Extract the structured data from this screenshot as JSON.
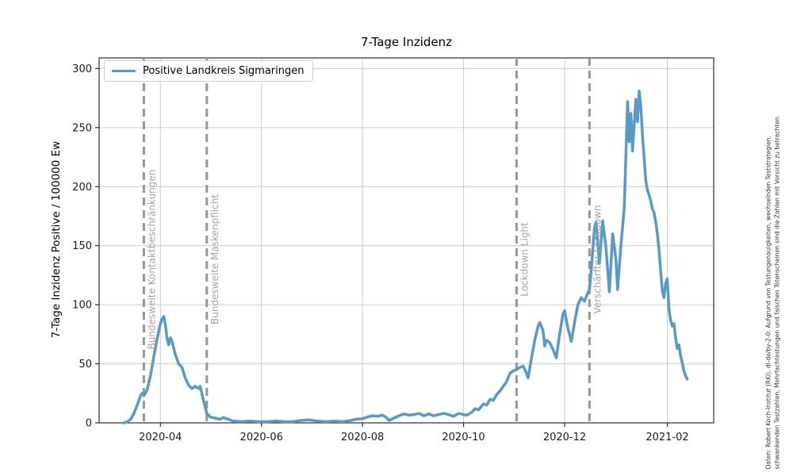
{
  "figure": {
    "title": "7-Tage Inzidenz",
    "source_note_lines": [
      "Daten: Robert Koch-Institut (RKI), dl-de/by-2-0: Aufgrund von Testungenauigkeiten, wechselnden Teststrategien,",
      "schwankenden Testzahlen, Mehrfachtestungen und falschen Totenscheinen sind die Zahlen mit Vorsicht zu betrachten."
    ]
  },
  "colors": {
    "series": "#5799c7",
    "event_line": "#969696",
    "event_label": "#a3a3a3",
    "grid": "#cccccc",
    "spine": "#2b2b2b",
    "tick_text": "#1a1a1a"
  },
  "chart_data": {
    "type": "line",
    "title": "7-Tage Inzidenz",
    "xlabel": "",
    "ylabel": "7-Tage Inzidenz Positive / 100000 Ew",
    "legend_position": "upper left",
    "grid": true,
    "xlim": [
      "2020-02-24",
      "2021-03-01"
    ],
    "ylim": [
      0,
      309
    ],
    "yticks": [
      0,
      50,
      100,
      150,
      200,
      250,
      300
    ],
    "xticks": [
      {
        "date": "2020-04-01",
        "label": "2020-04"
      },
      {
        "date": "2020-06-01",
        "label": "2020-06"
      },
      {
        "date": "2020-08-01",
        "label": "2020-08"
      },
      {
        "date": "2020-10-01",
        "label": "2020-10"
      },
      {
        "date": "2020-12-01",
        "label": "2020-12"
      },
      {
        "date": "2021-02-01",
        "label": "2021-02"
      }
    ],
    "events": [
      {
        "date": "2020-03-22",
        "label": "Bundesweite Kontaktbeschränkungen"
      },
      {
        "date": "2020-04-29",
        "label": "Bundesweite Maskenpflicht"
      },
      {
        "date": "2020-11-02",
        "label": "Lockdown Light"
      },
      {
        "date": "2020-12-16",
        "label": "Verschärfter Lockdown"
      }
    ],
    "series": [
      {
        "name": "Positive Landkreis Sigmaringen",
        "color": "#5799c7",
        "points": [
          [
            "2020-03-10",
            0
          ],
          [
            "2020-03-12",
            1
          ],
          [
            "2020-03-14",
            3
          ],
          [
            "2020-03-16",
            8
          ],
          [
            "2020-03-18",
            15
          ],
          [
            "2020-03-20",
            23
          ],
          [
            "2020-03-21",
            25
          ],
          [
            "2020-03-22",
            23
          ],
          [
            "2020-03-24",
            28
          ],
          [
            "2020-03-26",
            40
          ],
          [
            "2020-03-28",
            56
          ],
          [
            "2020-03-30",
            71
          ],
          [
            "2020-04-01",
            84
          ],
          [
            "2020-04-02",
            88
          ],
          [
            "2020-04-03",
            90
          ],
          [
            "2020-04-04",
            83
          ],
          [
            "2020-04-05",
            72
          ],
          [
            "2020-04-06",
            66
          ],
          [
            "2020-04-07",
            72
          ],
          [
            "2020-04-08",
            69
          ],
          [
            "2020-04-10",
            58
          ],
          [
            "2020-04-12",
            50
          ],
          [
            "2020-04-14",
            47
          ],
          [
            "2020-04-16",
            38
          ],
          [
            "2020-04-18",
            32
          ],
          [
            "2020-04-20",
            29
          ],
          [
            "2020-04-22",
            31
          ],
          [
            "2020-04-24",
            29
          ],
          [
            "2020-04-25",
            31
          ],
          [
            "2020-04-27",
            19
          ],
          [
            "2020-04-29",
            8
          ],
          [
            "2020-05-01",
            5
          ],
          [
            "2020-05-04",
            4
          ],
          [
            "2020-05-07",
            3
          ],
          [
            "2020-05-09",
            4.5
          ],
          [
            "2020-05-12",
            3
          ],
          [
            "2020-05-15",
            1.5
          ],
          [
            "2020-05-20",
            1
          ],
          [
            "2020-05-25",
            1.5
          ],
          [
            "2020-05-30",
            1
          ],
          [
            "2020-06-05",
            1
          ],
          [
            "2020-06-10",
            1.5
          ],
          [
            "2020-06-15",
            1
          ],
          [
            "2020-06-20",
            1
          ],
          [
            "2020-06-25",
            2
          ],
          [
            "2020-06-30",
            2.5
          ],
          [
            "2020-07-05",
            1.5
          ],
          [
            "2020-07-10",
            1
          ],
          [
            "2020-07-15",
            1.5
          ],
          [
            "2020-07-20",
            1
          ],
          [
            "2020-07-25",
            2
          ],
          [
            "2020-07-28",
            3
          ],
          [
            "2020-08-01",
            3.5
          ],
          [
            "2020-08-04",
            5
          ],
          [
            "2020-08-07",
            6
          ],
          [
            "2020-08-10",
            5.5
          ],
          [
            "2020-08-13",
            6.5
          ],
          [
            "2020-08-15",
            5
          ],
          [
            "2020-08-17",
            2
          ],
          [
            "2020-08-20",
            4
          ],
          [
            "2020-08-23",
            6
          ],
          [
            "2020-08-26",
            7.5
          ],
          [
            "2020-08-29",
            6.5
          ],
          [
            "2020-09-01",
            7
          ],
          [
            "2020-09-04",
            8
          ],
          [
            "2020-09-07",
            6
          ],
          [
            "2020-09-10",
            7.5
          ],
          [
            "2020-09-13",
            6
          ],
          [
            "2020-09-16",
            7
          ],
          [
            "2020-09-19",
            8
          ],
          [
            "2020-09-22",
            7
          ],
          [
            "2020-09-25",
            5.5
          ],
          [
            "2020-09-28",
            8
          ],
          [
            "2020-10-01",
            7
          ],
          [
            "2020-10-03",
            6.5
          ],
          [
            "2020-10-06",
            9
          ],
          [
            "2020-10-08",
            12
          ],
          [
            "2020-10-10",
            11
          ],
          [
            "2020-10-13",
            16
          ],
          [
            "2020-10-15",
            15
          ],
          [
            "2020-10-17",
            20
          ],
          [
            "2020-10-19",
            19
          ],
          [
            "2020-10-21",
            24
          ],
          [
            "2020-10-23",
            27
          ],
          [
            "2020-10-25",
            31
          ],
          [
            "2020-10-27",
            35
          ],
          [
            "2020-10-29",
            42
          ],
          [
            "2020-10-31",
            44
          ],
          [
            "2020-11-02",
            45
          ],
          [
            "2020-11-04",
            47
          ],
          [
            "2020-11-06",
            48
          ],
          [
            "2020-11-08",
            42
          ],
          [
            "2020-11-09",
            38
          ],
          [
            "2020-11-11",
            55
          ],
          [
            "2020-11-13",
            70
          ],
          [
            "2020-11-15",
            82
          ],
          [
            "2020-11-16",
            85
          ],
          [
            "2020-11-18",
            78
          ],
          [
            "2020-11-19",
            65
          ],
          [
            "2020-11-20",
            70
          ],
          [
            "2020-11-22",
            68
          ],
          [
            "2020-11-24",
            62
          ],
          [
            "2020-11-26",
            55
          ],
          [
            "2020-11-28",
            75
          ],
          [
            "2020-11-30",
            92
          ],
          [
            "2020-12-01",
            95
          ],
          [
            "2020-12-03",
            80
          ],
          [
            "2020-12-05",
            69
          ],
          [
            "2020-12-07",
            85
          ],
          [
            "2020-12-09",
            100
          ],
          [
            "2020-12-11",
            106
          ],
          [
            "2020-12-13",
            103
          ],
          [
            "2020-12-15",
            110
          ],
          [
            "2020-12-16",
            113
          ],
          [
            "2020-12-17",
            128
          ],
          [
            "2020-12-19",
            165
          ],
          [
            "2020-12-20",
            170
          ],
          [
            "2020-12-22",
            135
          ],
          [
            "2020-12-24",
            171
          ],
          [
            "2020-12-26",
            148
          ],
          [
            "2020-12-28",
            111
          ],
          [
            "2020-12-30",
            160
          ],
          [
            "2021-01-01",
            138
          ],
          [
            "2021-01-02",
            113
          ],
          [
            "2021-01-04",
            150
          ],
          [
            "2021-01-06",
            182
          ],
          [
            "2021-01-08",
            272
          ],
          [
            "2021-01-09",
            238
          ],
          [
            "2021-01-10",
            262
          ],
          [
            "2021-01-11",
            230
          ],
          [
            "2021-01-13",
            274
          ],
          [
            "2021-01-14",
            255
          ],
          [
            "2021-01-15",
            281
          ],
          [
            "2021-01-16",
            268
          ],
          [
            "2021-01-17",
            243
          ],
          [
            "2021-01-19",
            205
          ],
          [
            "2021-01-20",
            197
          ],
          [
            "2021-01-21",
            193
          ],
          [
            "2021-01-22",
            188
          ],
          [
            "2021-01-23",
            181
          ],
          [
            "2021-01-24",
            178
          ],
          [
            "2021-01-25",
            170
          ],
          [
            "2021-01-26",
            160
          ],
          [
            "2021-01-27",
            146
          ],
          [
            "2021-01-28",
            128
          ],
          [
            "2021-01-29",
            112
          ],
          [
            "2021-01-30",
            106
          ],
          [
            "2021-01-31",
            118
          ],
          [
            "2021-02-01",
            122
          ],
          [
            "2021-02-02",
            96
          ],
          [
            "2021-02-03",
            87
          ],
          [
            "2021-02-04",
            82
          ],
          [
            "2021-02-05",
            84
          ],
          [
            "2021-02-06",
            72
          ],
          [
            "2021-02-07",
            63
          ],
          [
            "2021-02-08",
            66
          ],
          [
            "2021-02-09",
            57
          ],
          [
            "2021-02-10",
            51
          ],
          [
            "2021-02-11",
            44
          ],
          [
            "2021-02-12",
            40
          ],
          [
            "2021-02-13",
            37
          ]
        ]
      }
    ]
  }
}
